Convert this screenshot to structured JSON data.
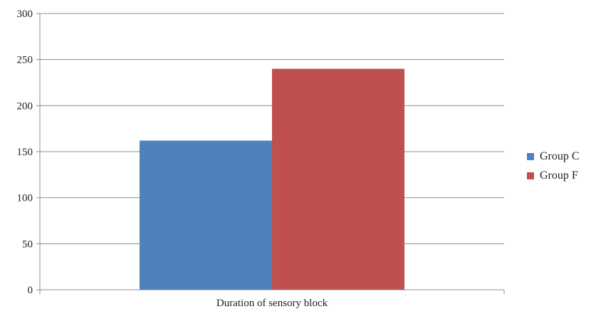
{
  "chart_data": {
    "type": "bar",
    "categories": [
      "Duration of sensory block"
    ],
    "series": [
      {
        "name": "Group C",
        "values": [
          162
        ],
        "color": "#4f81bd"
      },
      {
        "name": "Group F",
        "values": [
          240
        ],
        "color": "#c0504d"
      }
    ],
    "ylim": [
      0,
      300
    ],
    "yticks": [
      0,
      50,
      100,
      150,
      200,
      250,
      300
    ],
    "grid": true,
    "legend": "right"
  }
}
